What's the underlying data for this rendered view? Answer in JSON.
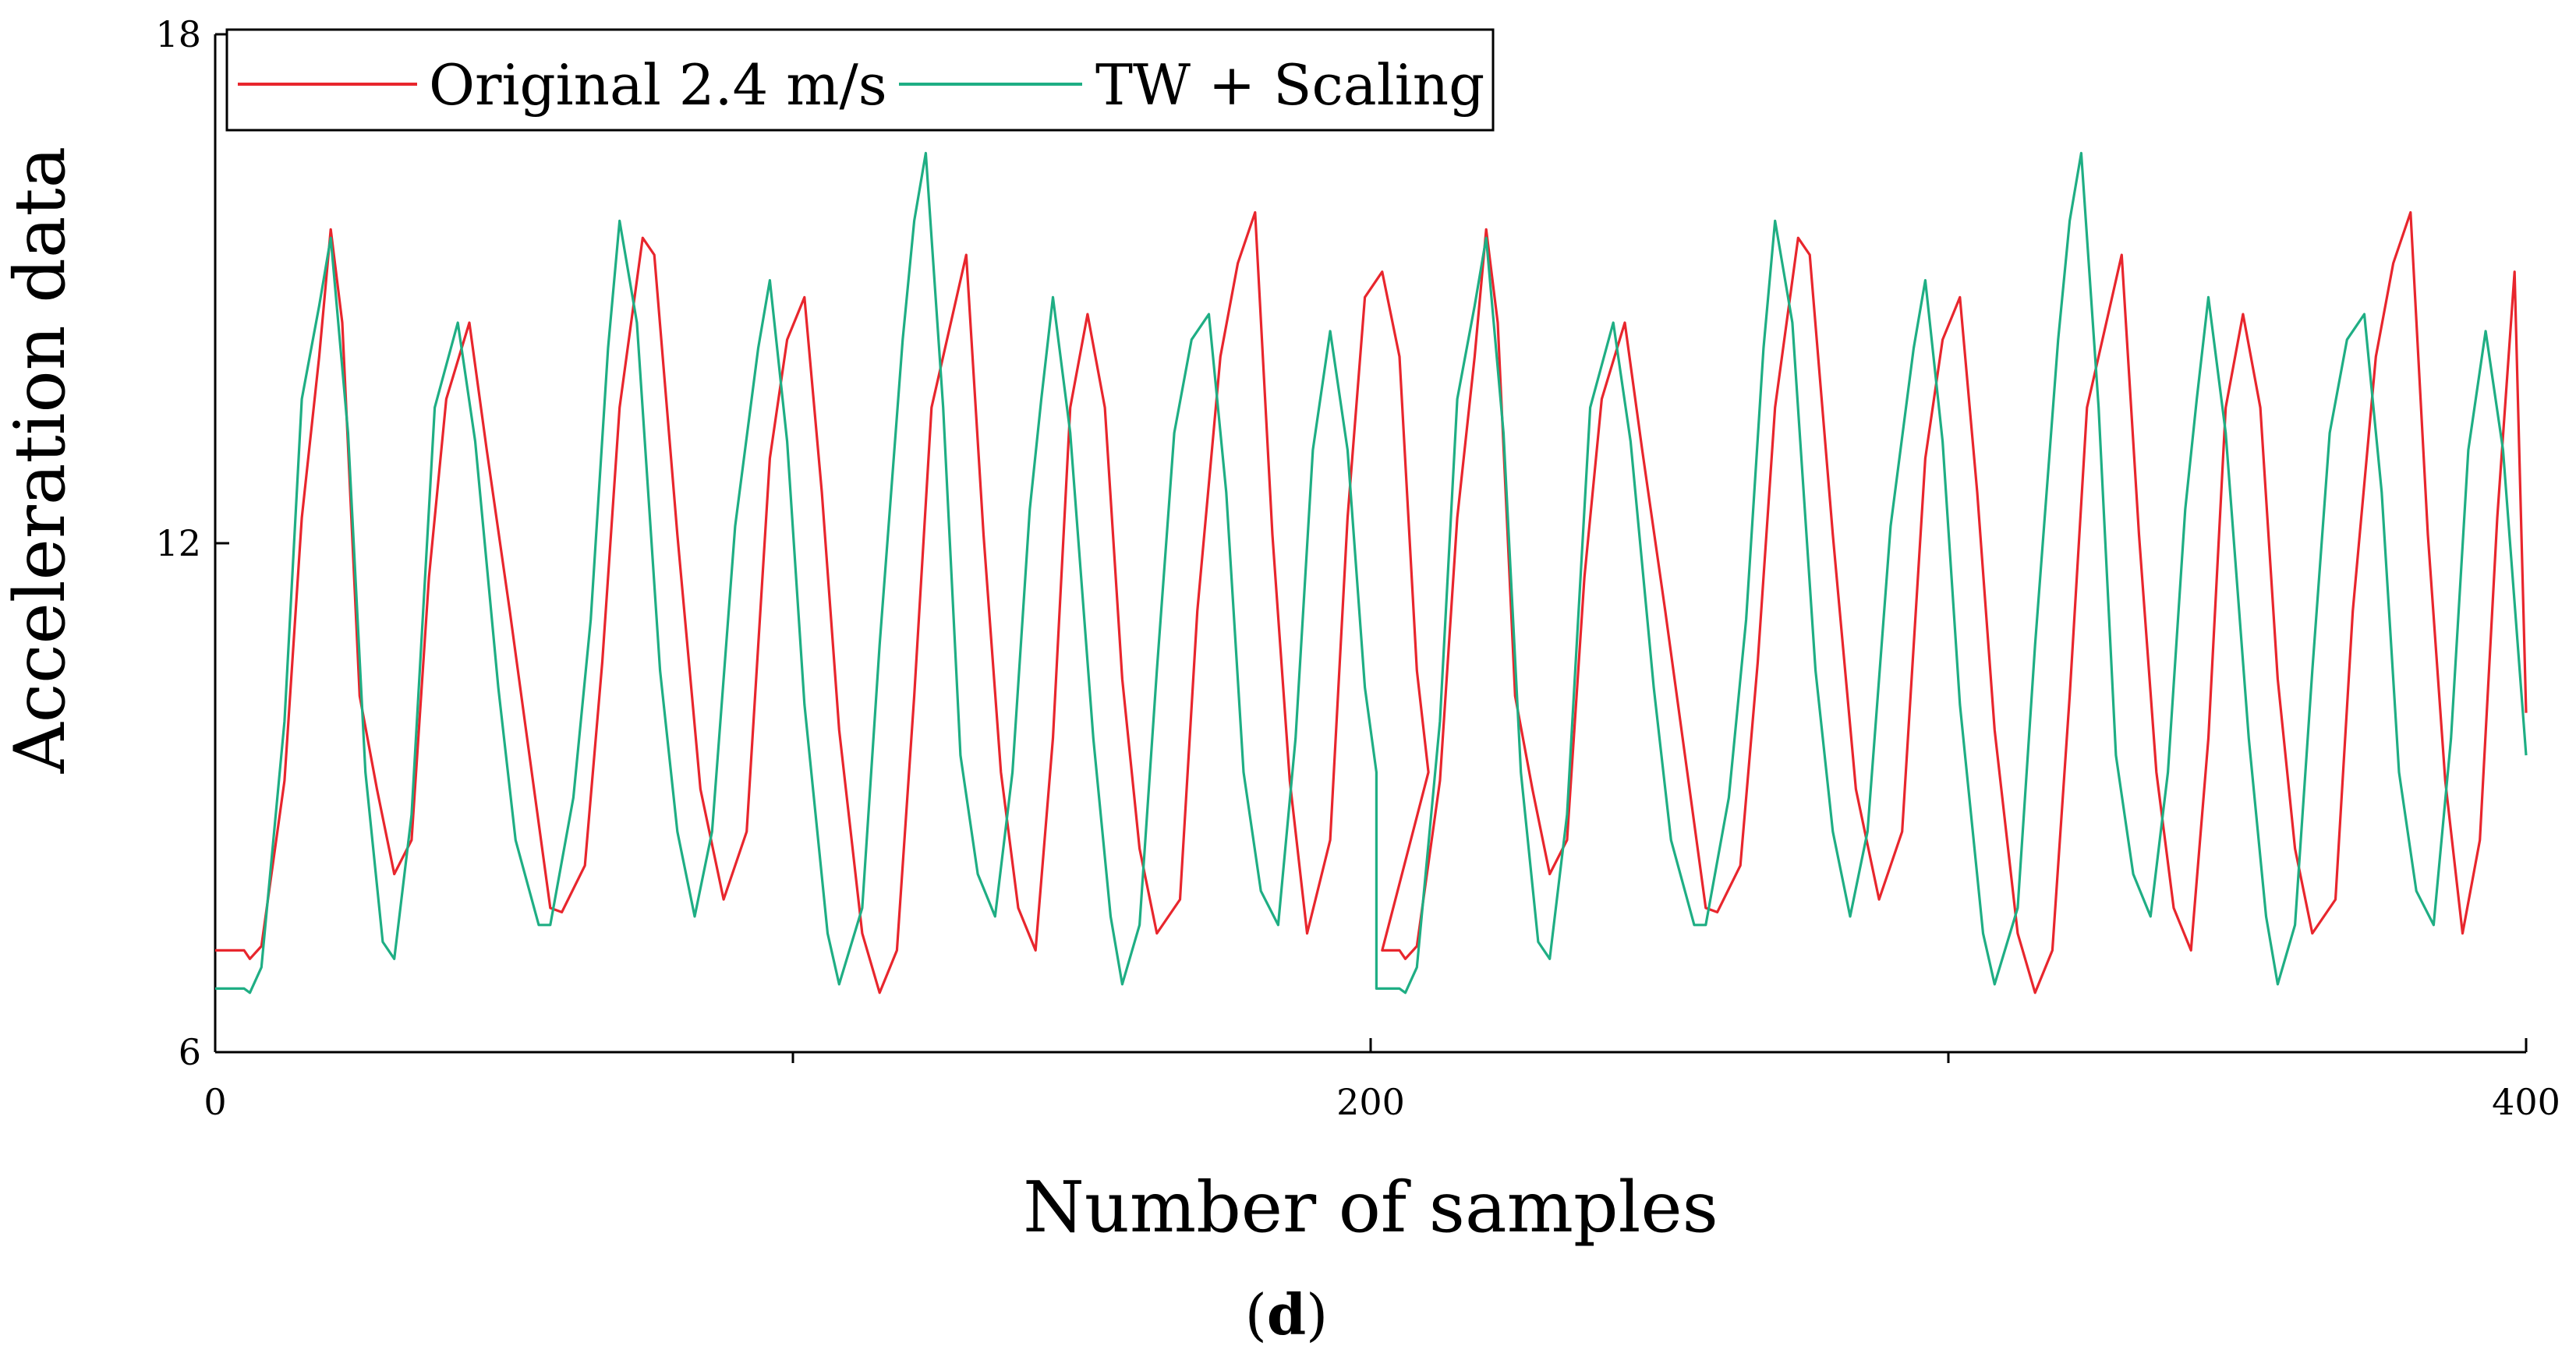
{
  "chart_data": {
    "type": "line",
    "title": "",
    "xlabel": "Number of samples",
    "ylabel": "Acceleration data",
    "xlim": [
      0,
      400
    ],
    "ylim": [
      6,
      18
    ],
    "xticks": [
      0,
      200,
      400
    ],
    "xtick_labels": [
      "0",
      "200",
      "400"
    ],
    "xminor_ticks": [
      100,
      300
    ],
    "yticks": [
      6,
      12,
      18
    ],
    "ytick_labels": [
      "6",
      "12",
      "18"
    ],
    "grid": false,
    "legend_position": "top-left",
    "panel_label": {
      "open": "(",
      "letter": "d",
      "close": ")"
    },
    "series": [
      {
        "name": "Original 2.4 m/s",
        "color": "#e8262d",
        "points": [
          [
            0,
            7.2
          ],
          [
            5,
            7.2
          ],
          [
            6,
            7.1
          ],
          [
            8,
            7.25
          ],
          [
            12,
            9.2
          ],
          [
            15,
            12.3
          ],
          [
            18,
            14.2
          ],
          [
            20,
            15.7
          ],
          [
            22,
            14.6
          ],
          [
            25,
            10.2
          ],
          [
            28,
            9.1
          ],
          [
            31,
            8.1
          ],
          [
            34,
            8.5
          ],
          [
            37,
            11.6
          ],
          [
            40,
            13.7
          ],
          [
            44,
            14.6
          ],
          [
            47,
            13.1
          ],
          [
            51,
            11.2
          ],
          [
            55,
            9.2
          ],
          [
            58,
            7.7
          ],
          [
            60,
            7.65
          ],
          [
            64,
            8.2
          ],
          [
            67,
            10.6
          ],
          [
            70,
            13.6
          ],
          [
            74,
            15.6
          ],
          [
            76,
            15.4
          ],
          [
            80,
            12.1
          ],
          [
            84,
            9.1
          ],
          [
            88,
            7.8
          ],
          [
            92,
            8.6
          ],
          [
            96,
            13.0
          ],
          [
            99,
            14.4
          ],
          [
            102,
            14.9
          ],
          [
            105,
            12.6
          ],
          [
            108,
            9.8
          ],
          [
            112,
            7.4
          ],
          [
            115,
            6.7
          ],
          [
            118,
            7.2
          ],
          [
            121,
            10.2
          ],
          [
            124,
            13.6
          ],
          [
            127,
            14.5
          ],
          [
            130,
            15.4
          ],
          [
            133,
            12.1
          ],
          [
            136,
            9.3
          ],
          [
            139,
            7.7
          ],
          [
            142,
            7.2
          ],
          [
            145,
            9.7
          ],
          [
            148,
            13.6
          ],
          [
            151,
            14.7
          ],
          [
            154,
            13.6
          ],
          [
            157,
            10.4
          ],
          [
            160,
            8.4
          ],
          [
            163,
            7.4
          ],
          [
            167,
            7.8
          ],
          [
            170,
            11.2
          ],
          [
            174,
            14.2
          ],
          [
            177,
            15.3
          ],
          [
            180,
            15.9
          ],
          [
            183,
            12.1
          ],
          [
            186,
            9.2
          ],
          [
            189,
            7.4
          ],
          [
            193,
            8.5
          ],
          [
            196,
            12.3
          ],
          [
            199,
            14.9
          ],
          [
            202,
            15.2
          ],
          [
            205,
            14.2
          ],
          [
            208,
            10.5
          ],
          [
            210,
            9.3
          ],
          [
            202,
            7.2
          ],
          [
            205,
            7.2
          ],
          [
            206,
            7.1
          ],
          [
            208,
            7.25
          ],
          [
            212,
            9.2
          ],
          [
            215,
            12.3
          ],
          [
            218,
            14.2
          ],
          [
            220,
            15.7
          ],
          [
            222,
            14.6
          ],
          [
            225,
            10.2
          ],
          [
            228,
            9.1
          ],
          [
            231,
            8.1
          ],
          [
            234,
            8.5
          ],
          [
            237,
            11.6
          ],
          [
            240,
            13.7
          ],
          [
            244,
            14.6
          ],
          [
            247,
            13.1
          ],
          [
            251,
            11.2
          ],
          [
            255,
            9.2
          ],
          [
            258,
            7.7
          ],
          [
            260,
            7.65
          ],
          [
            264,
            8.2
          ],
          [
            267,
            10.6
          ],
          [
            270,
            13.6
          ],
          [
            274,
            15.6
          ],
          [
            276,
            15.4
          ],
          [
            280,
            12.1
          ],
          [
            284,
            9.1
          ],
          [
            288,
            7.8
          ],
          [
            292,
            8.6
          ],
          [
            296,
            13.0
          ],
          [
            299,
            14.4
          ],
          [
            302,
            14.9
          ],
          [
            305,
            12.6
          ],
          [
            308,
            9.8
          ],
          [
            312,
            7.4
          ],
          [
            315,
            6.7
          ],
          [
            318,
            7.2
          ],
          [
            321,
            10.2
          ],
          [
            324,
            13.6
          ],
          [
            327,
            14.5
          ],
          [
            330,
            15.4
          ],
          [
            333,
            12.1
          ],
          [
            336,
            9.3
          ],
          [
            339,
            7.7
          ],
          [
            342,
            7.2
          ],
          [
            345,
            9.7
          ],
          [
            348,
            13.6
          ],
          [
            351,
            14.7
          ],
          [
            354,
            13.6
          ],
          [
            357,
            10.4
          ],
          [
            360,
            8.4
          ],
          [
            363,
            7.4
          ],
          [
            367,
            7.8
          ],
          [
            370,
            11.2
          ],
          [
            374,
            14.2
          ],
          [
            377,
            15.3
          ],
          [
            380,
            15.9
          ],
          [
            383,
            12.1
          ],
          [
            386,
            9.2
          ],
          [
            389,
            7.4
          ],
          [
            392,
            8.5
          ],
          [
            395,
            12.3
          ],
          [
            398,
            15.2
          ],
          [
            400,
            10.0
          ]
        ]
      },
      {
        "name": "TW + Scaling",
        "color": "#1fae84",
        "points": [
          [
            0,
            6.75
          ],
          [
            5,
            6.75
          ],
          [
            6,
            6.7
          ],
          [
            8,
            7.0
          ],
          [
            12,
            9.9
          ],
          [
            15,
            13.7
          ],
          [
            18,
            14.8
          ],
          [
            20,
            15.6
          ],
          [
            23,
            13.3
          ],
          [
            26,
            9.3
          ],
          [
            29,
            7.3
          ],
          [
            31,
            7.1
          ],
          [
            34,
            8.8
          ],
          [
            38,
            13.6
          ],
          [
            42,
            14.6
          ],
          [
            45,
            13.2
          ],
          [
            49,
            10.3
          ],
          [
            52,
            8.5
          ],
          [
            56,
            7.5
          ],
          [
            58,
            7.5
          ],
          [
            62,
            9.0
          ],
          [
            65,
            11.1
          ],
          [
            68,
            14.3
          ],
          [
            70,
            15.8
          ],
          [
            73,
            14.6
          ],
          [
            77,
            10.5
          ],
          [
            80,
            8.6
          ],
          [
            83,
            7.6
          ],
          [
            86,
            8.6
          ],
          [
            90,
            12.2
          ],
          [
            94,
            14.3
          ],
          [
            96,
            15.1
          ],
          [
            99,
            13.2
          ],
          [
            102,
            10.1
          ],
          [
            106,
            7.4
          ],
          [
            108,
            6.8
          ],
          [
            112,
            7.7
          ],
          [
            115,
            10.8
          ],
          [
            119,
            14.4
          ],
          [
            121,
            15.8
          ],
          [
            123,
            16.6
          ],
          [
            126,
            13.6
          ],
          [
            129,
            9.5
          ],
          [
            132,
            8.1
          ],
          [
            135,
            7.6
          ],
          [
            138,
            9.3
          ],
          [
            141,
            12.4
          ],
          [
            143,
            13.7
          ],
          [
            145,
            14.9
          ],
          [
            148,
            13.3
          ],
          [
            152,
            9.7
          ],
          [
            155,
            7.6
          ],
          [
            157,
            6.8
          ],
          [
            160,
            7.5
          ],
          [
            163,
            10.5
          ],
          [
            166,
            13.3
          ],
          [
            169,
            14.4
          ],
          [
            172,
            14.7
          ],
          [
            175,
            12.6
          ],
          [
            178,
            9.3
          ],
          [
            181,
            7.9
          ],
          [
            184,
            7.5
          ],
          [
            187,
            9.7
          ],
          [
            190,
            13.1
          ],
          [
            193,
            14.5
          ],
          [
            196,
            13.1
          ],
          [
            199,
            10.3
          ],
          [
            201,
            9.3
          ],
          [
            201,
            6.75
          ],
          [
            205,
            6.75
          ],
          [
            206,
            6.7
          ],
          [
            208,
            7.0
          ],
          [
            212,
            9.9
          ],
          [
            215,
            13.7
          ],
          [
            218,
            14.8
          ],
          [
            220,
            15.6
          ],
          [
            223,
            13.3
          ],
          [
            226,
            9.3
          ],
          [
            229,
            7.3
          ],
          [
            231,
            7.1
          ],
          [
            234,
            8.8
          ],
          [
            238,
            13.6
          ],
          [
            242,
            14.6
          ],
          [
            245,
            13.2
          ],
          [
            249,
            10.3
          ],
          [
            252,
            8.5
          ],
          [
            256,
            7.5
          ],
          [
            258,
            7.5
          ],
          [
            262,
            9.0
          ],
          [
            265,
            11.1
          ],
          [
            268,
            14.3
          ],
          [
            270,
            15.8
          ],
          [
            273,
            14.6
          ],
          [
            277,
            10.5
          ],
          [
            280,
            8.6
          ],
          [
            283,
            7.6
          ],
          [
            286,
            8.6
          ],
          [
            290,
            12.2
          ],
          [
            294,
            14.3
          ],
          [
            296,
            15.1
          ],
          [
            299,
            13.2
          ],
          [
            302,
            10.1
          ],
          [
            306,
            7.4
          ],
          [
            308,
            6.8
          ],
          [
            312,
            7.7
          ],
          [
            315,
            10.8
          ],
          [
            319,
            14.4
          ],
          [
            321,
            15.8
          ],
          [
            323,
            16.6
          ],
          [
            326,
            13.6
          ],
          [
            329,
            9.5
          ],
          [
            332,
            8.1
          ],
          [
            335,
            7.6
          ],
          [
            338,
            9.3
          ],
          [
            341,
            12.4
          ],
          [
            343,
            13.7
          ],
          [
            345,
            14.9
          ],
          [
            348,
            13.3
          ],
          [
            352,
            9.7
          ],
          [
            355,
            7.6
          ],
          [
            357,
            6.8
          ],
          [
            360,
            7.5
          ],
          [
            363,
            10.5
          ],
          [
            366,
            13.3
          ],
          [
            369,
            14.4
          ],
          [
            372,
            14.7
          ],
          [
            375,
            12.6
          ],
          [
            378,
            9.3
          ],
          [
            381,
            7.9
          ],
          [
            384,
            7.5
          ],
          [
            387,
            9.7
          ],
          [
            390,
            13.1
          ],
          [
            393,
            14.5
          ],
          [
            396,
            13.1
          ],
          [
            400,
            9.5
          ]
        ]
      }
    ]
  }
}
